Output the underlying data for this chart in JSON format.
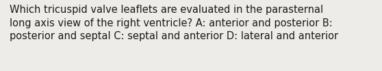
{
  "text": "Which tricuspid valve leaflets are evaluated in the parasternal\nlong axis view of the right ventricle? A: anterior and posterior B:\nposterior and septal C: septal and anterior D: lateral and anterior",
  "background_color": "#eeece9",
  "text_color": "#1a1a1a",
  "font_size": 10.5,
  "fig_width": 5.58,
  "fig_height": 1.05,
  "dpi": 100
}
